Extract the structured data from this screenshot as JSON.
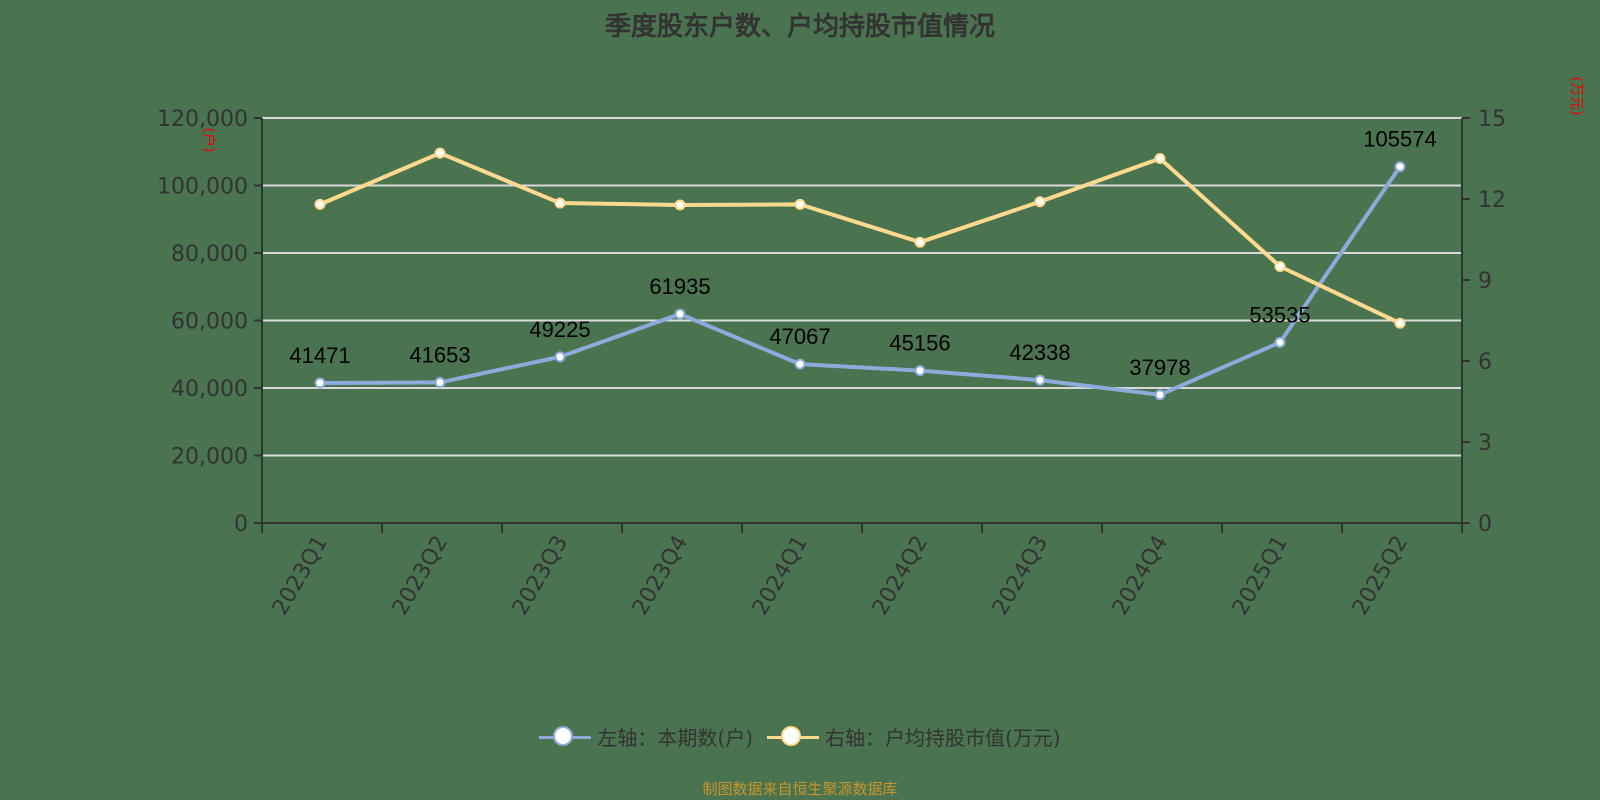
{
  "title": "季度股东户数、户均持股市值情况",
  "footer": "制图数据来自恒生聚源数据库",
  "left_axis_unit": "(户)",
  "right_axis_unit": "(万元)",
  "legend": [
    {
      "label": "左轴：本期数(户)",
      "color": "#8eaadb"
    },
    {
      "label": "右轴：户均持股市值(万元)",
      "color": "#ffd98e"
    }
  ],
  "chart_data": {
    "type": "line",
    "title": "季度股东户数、户均持股市值情况",
    "categories": [
      "2023Q1",
      "2023Q2",
      "2023Q3",
      "2023Q4",
      "2024Q1",
      "2024Q2",
      "2024Q3",
      "2024Q4",
      "2025Q1",
      "2025Q2"
    ],
    "series": [
      {
        "name": "左轴：本期数(户)",
        "axis": "left",
        "color": "#8eaadb",
        "values": [
          41471,
          41653,
          49225,
          61935,
          47067,
          45156,
          42338,
          37978,
          53535,
          105574
        ],
        "labels_shown": true
      },
      {
        "name": "右轴：户均持股市值(万元)",
        "axis": "right",
        "color": "#ffd98e",
        "values": [
          11.8,
          13.7,
          11.85,
          11.78,
          11.8,
          10.4,
          11.9,
          13.5,
          9.5,
          7.4
        ],
        "labels_shown": false
      }
    ],
    "left_axis": {
      "label": "(户)",
      "ylim": [
        0,
        120000
      ],
      "ticks": [
        "0",
        "20,000",
        "40,000",
        "60,000",
        "80,000",
        "100,000",
        "120,000"
      ]
    },
    "right_axis": {
      "label": "(万元)",
      "ylim": [
        0,
        15
      ],
      "ticks": [
        "0",
        "3",
        "6",
        "9",
        "12",
        "15"
      ]
    },
    "grid": true,
    "legend_position": "bottom",
    "xlabel": "",
    "ylabel": "(户)"
  }
}
